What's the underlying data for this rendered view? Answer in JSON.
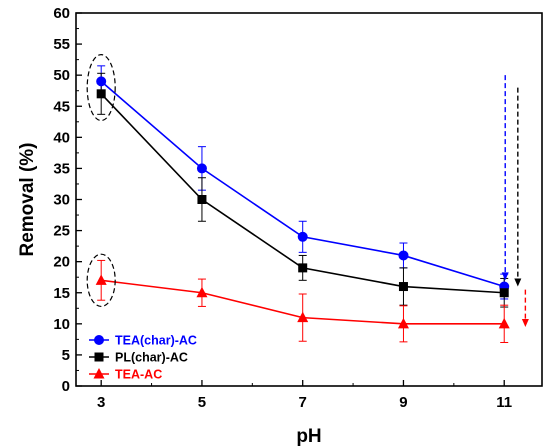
{
  "chart_data": {
    "type": "line",
    "title": "",
    "xlabel": "pH",
    "ylabel": "Removal (%)",
    "x": [
      3,
      5,
      7,
      9,
      11
    ],
    "x_ticks": [
      3,
      5,
      7,
      9,
      11
    ],
    "xlim": [
      2.5,
      11.75
    ],
    "y_ticks": [
      0,
      5,
      10,
      15,
      20,
      25,
      30,
      35,
      40,
      45,
      50,
      55,
      60
    ],
    "ylim": [
      0,
      60
    ],
    "grid": false,
    "legend_position": "bottom-left",
    "series": [
      {
        "name": "TEA(char)-AC",
        "color": "#0000ff",
        "marker": "circle",
        "values": [
          49,
          35,
          24,
          21,
          16
        ],
        "errors": [
          2.5,
          3.5,
          2.5,
          2,
          2
        ]
      },
      {
        "name": "PL(char)-AC",
        "color": "#000000",
        "marker": "square",
        "values": [
          47,
          30,
          19,
          16,
          15
        ],
        "errors": [
          3.3,
          3.5,
          2,
          3,
          2.3
        ]
      },
      {
        "name": "TEA-AC",
        "color": "#ff0000",
        "marker": "triangle",
        "values": [
          17,
          15,
          11,
          10,
          10
        ],
        "errors": [
          3.2,
          2.2,
          3.8,
          2.9,
          3
        ]
      }
    ],
    "annotations": {
      "ellipses": [
        {
          "x": 3,
          "y_center": 48,
          "y_radius": 5.3
        },
        {
          "x": 3,
          "y_center": 17,
          "y_radius": 4.2
        }
      ],
      "dashed_arrows": [
        {
          "color": "#0000ff",
          "x": 11.02,
          "y_from": 50,
          "y_to": 17
        },
        {
          "color": "#000000",
          "x": 11.27,
          "y_from": 48,
          "y_to": 16
        },
        {
          "color": "#ff0000",
          "x": 11.42,
          "y_from": 15.5,
          "y_to": 9.5
        }
      ]
    }
  }
}
